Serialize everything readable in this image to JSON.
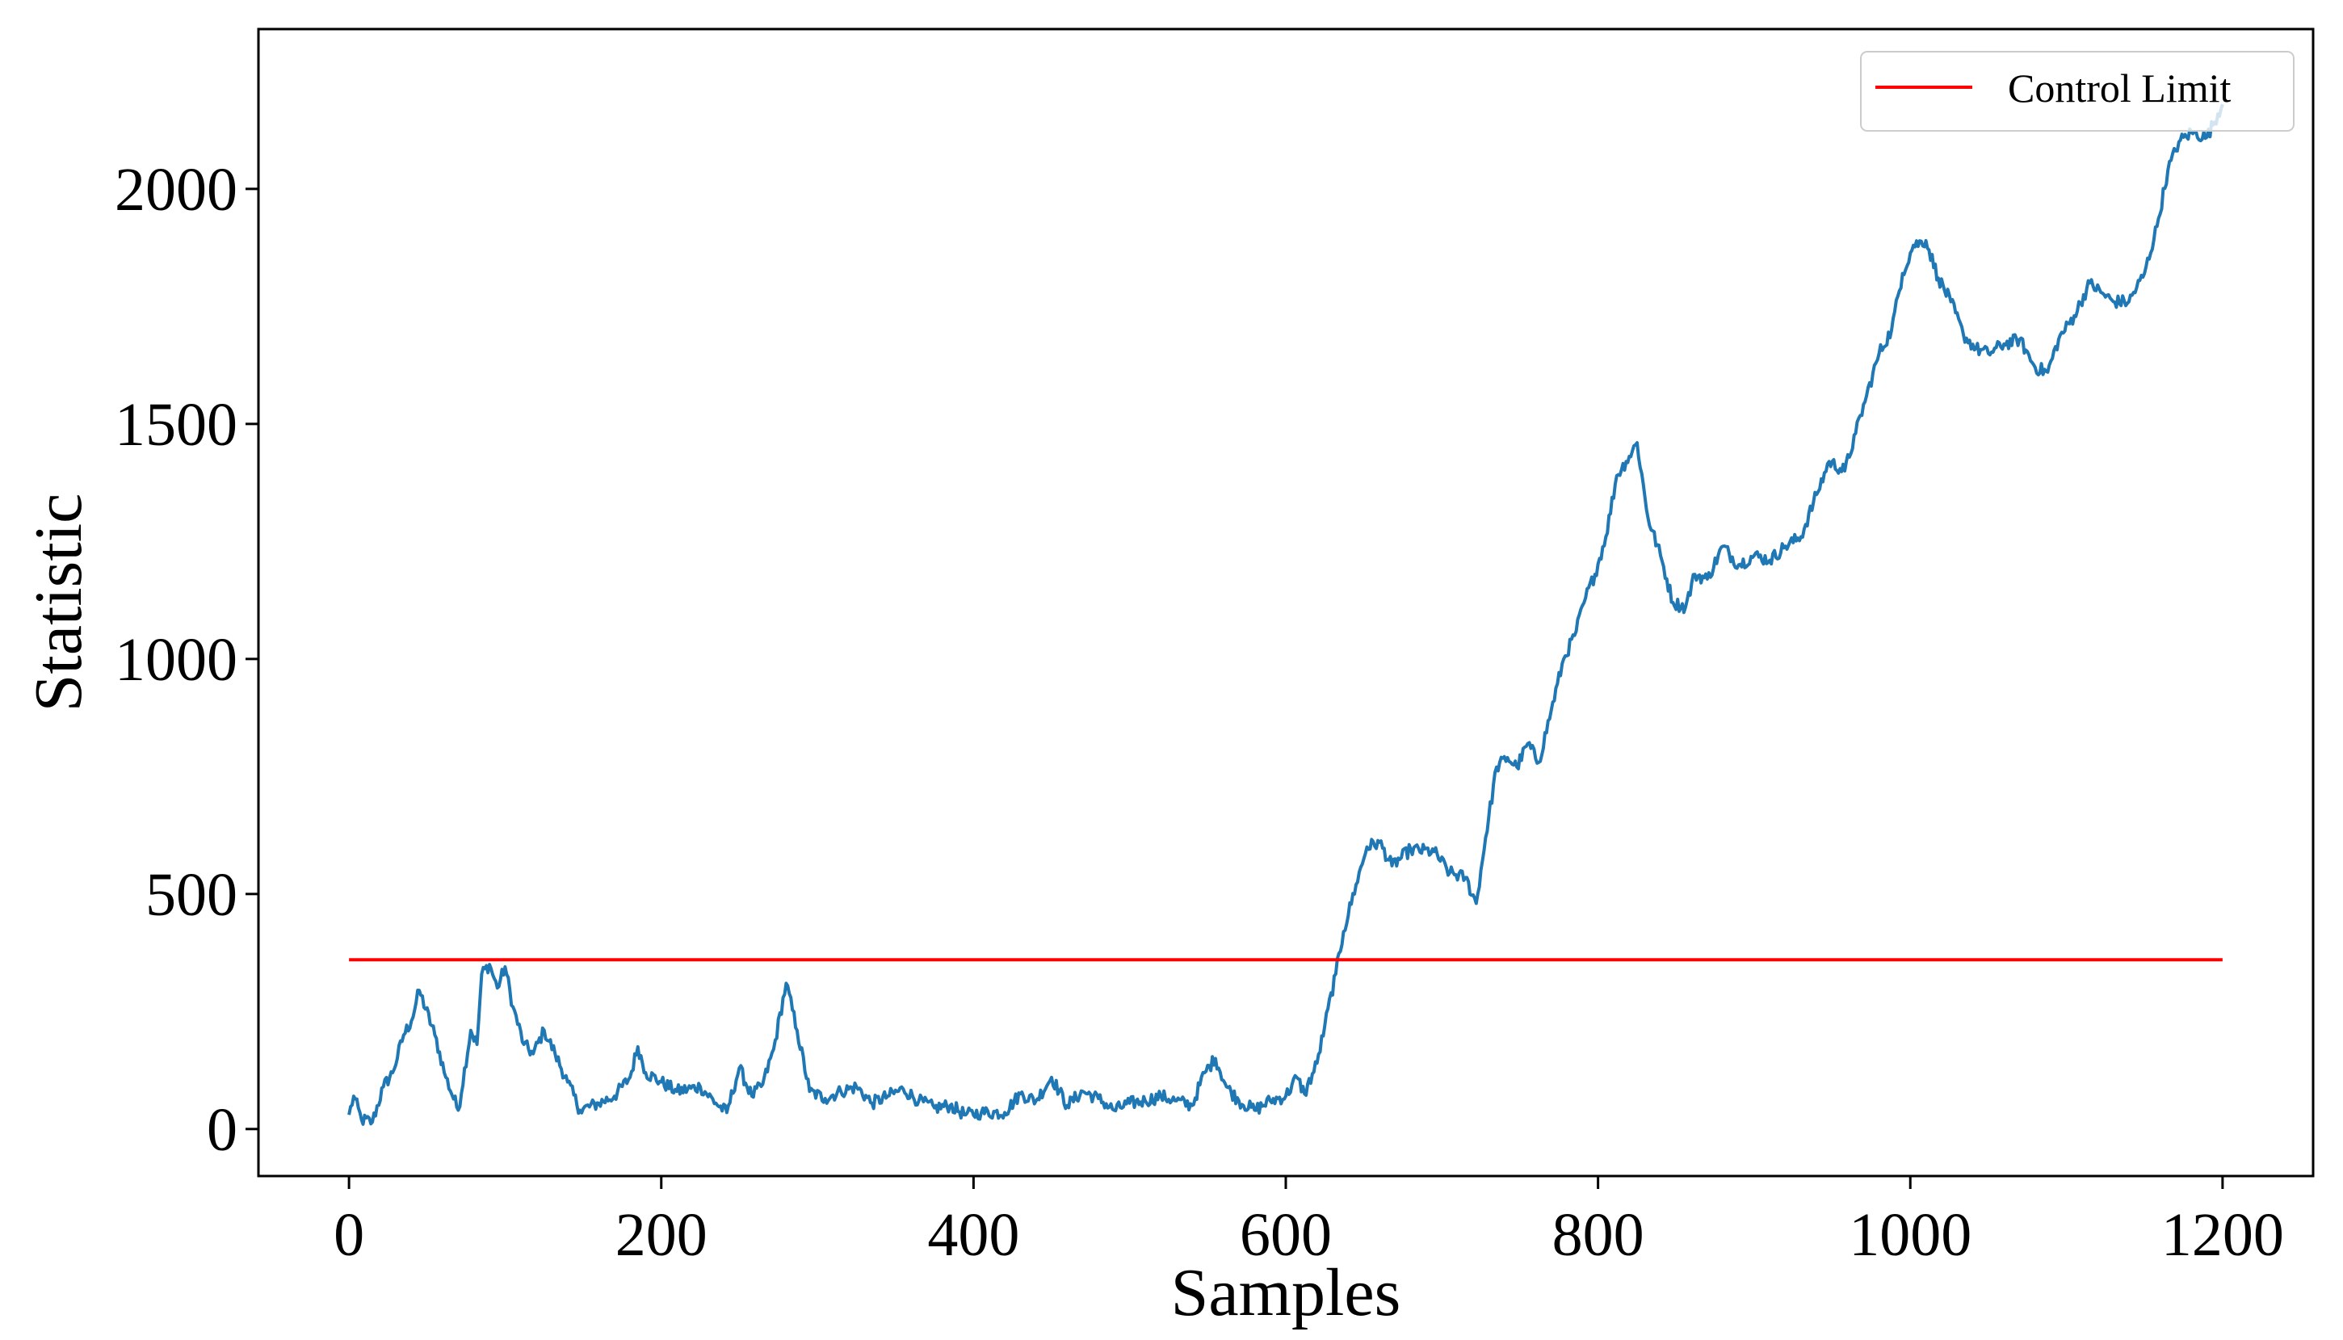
{
  "chart_data": {
    "type": "line",
    "title": "",
    "xlabel": "Samples",
    "ylabel": "Statistic",
    "xlim": [
      -58,
      1258
    ],
    "ylim": [
      -100,
      2340
    ],
    "xticks": [
      0,
      200,
      400,
      600,
      800,
      1000,
      1200
    ],
    "xtick_labels": [
      "0",
      "200",
      "400",
      "600",
      "800",
      "1000",
      "1200"
    ],
    "yticks": [
      0,
      500,
      1000,
      1500,
      2000
    ],
    "ytick_labels": [
      "0",
      "500",
      "1000",
      "1500",
      "2000"
    ],
    "grid": false,
    "legend": {
      "position": "top-right",
      "entries": [
        "Control Limit"
      ]
    },
    "control_limit": {
      "name": "Control Limit",
      "value": 360,
      "x_range": [
        0,
        1200
      ],
      "color": "#ff0000"
    },
    "series": [
      {
        "color": "#1f77b4",
        "noise": 14,
        "points": [
          [
            0,
            30
          ],
          [
            3,
            70
          ],
          [
            8,
            20
          ],
          [
            15,
            15
          ],
          [
            22,
            90
          ],
          [
            28,
            120
          ],
          [
            35,
            200
          ],
          [
            40,
            230
          ],
          [
            45,
            295
          ],
          [
            55,
            200
          ],
          [
            62,
            110
          ],
          [
            70,
            40
          ],
          [
            78,
            210
          ],
          [
            82,
            180
          ],
          [
            85,
            330
          ],
          [
            90,
            350
          ],
          [
            95,
            300
          ],
          [
            100,
            345
          ],
          [
            105,
            260
          ],
          [
            112,
            180
          ],
          [
            118,
            160
          ],
          [
            125,
            210
          ],
          [
            132,
            160
          ],
          [
            140,
            100
          ],
          [
            148,
            40
          ],
          [
            160,
            55
          ],
          [
            170,
            70
          ],
          [
            180,
            110
          ],
          [
            185,
            175
          ],
          [
            190,
            120
          ],
          [
            200,
            100
          ],
          [
            210,
            80
          ],
          [
            225,
            90
          ],
          [
            235,
            55
          ],
          [
            242,
            35
          ],
          [
            250,
            130
          ],
          [
            258,
            70
          ],
          [
            265,
            95
          ],
          [
            272,
            170
          ],
          [
            280,
            310
          ],
          [
            287,
            210
          ],
          [
            295,
            80
          ],
          [
            305,
            65
          ],
          [
            315,
            80
          ],
          [
            325,
            90
          ],
          [
            335,
            55
          ],
          [
            345,
            70
          ],
          [
            355,
            85
          ],
          [
            365,
            60
          ],
          [
            375,
            45
          ],
          [
            385,
            50
          ],
          [
            395,
            30
          ],
          [
            405,
            35
          ],
          [
            420,
            35
          ],
          [
            430,
            75
          ],
          [
            440,
            60
          ],
          [
            450,
            110
          ],
          [
            460,
            50
          ],
          [
            470,
            80
          ],
          [
            480,
            65
          ],
          [
            490,
            40
          ],
          [
            500,
            55
          ],
          [
            510,
            60
          ],
          [
            520,
            70
          ],
          [
            530,
            60
          ],
          [
            540,
            50
          ],
          [
            548,
            120
          ],
          [
            555,
            150
          ],
          [
            562,
            90
          ],
          [
            570,
            60
          ],
          [
            580,
            40
          ],
          [
            590,
            60
          ],
          [
            600,
            70
          ],
          [
            607,
            110
          ],
          [
            612,
            75
          ],
          [
            620,
            140
          ],
          [
            625,
            220
          ],
          [
            632,
            330
          ],
          [
            637,
            420
          ],
          [
            645,
            520
          ],
          [
            652,
            600
          ],
          [
            660,
            610
          ],
          [
            668,
            560
          ],
          [
            680,
            595
          ],
          [
            695,
            590
          ],
          [
            705,
            545
          ],
          [
            715,
            535
          ],
          [
            722,
            480
          ],
          [
            728,
            620
          ],
          [
            735,
            770
          ],
          [
            742,
            790
          ],
          [
            748,
            770
          ],
          [
            755,
            820
          ],
          [
            762,
            780
          ],
          [
            770,
            890
          ],
          [
            778,
            1000
          ],
          [
            785,
            1050
          ],
          [
            792,
            1130
          ],
          [
            798,
            1180
          ],
          [
            805,
            1260
          ],
          [
            812,
            1390
          ],
          [
            818,
            1420
          ],
          [
            825,
            1460
          ],
          [
            832,
            1300
          ],
          [
            840,
            1220
          ],
          [
            848,
            1120
          ],
          [
            856,
            1110
          ],
          [
            862,
            1180
          ],
          [
            870,
            1170
          ],
          [
            880,
            1240
          ],
          [
            890,
            1200
          ],
          [
            900,
            1220
          ],
          [
            910,
            1210
          ],
          [
            920,
            1240
          ],
          [
            930,
            1260
          ],
          [
            940,
            1350
          ],
          [
            948,
            1420
          ],
          [
            958,
            1400
          ],
          [
            965,
            1480
          ],
          [
            972,
            1560
          ],
          [
            980,
            1650
          ],
          [
            988,
            1700
          ],
          [
            995,
            1820
          ],
          [
            1002,
            1880
          ],
          [
            1010,
            1890
          ],
          [
            1018,
            1810
          ],
          [
            1026,
            1760
          ],
          [
            1034,
            1690
          ],
          [
            1042,
            1660
          ],
          [
            1050,
            1650
          ],
          [
            1060,
            1670
          ],
          [
            1070,
            1680
          ],
          [
            1080,
            1620
          ],
          [
            1088,
            1610
          ],
          [
            1095,
            1680
          ],
          [
            1105,
            1730
          ],
          [
            1115,
            1800
          ],
          [
            1122,
            1780
          ],
          [
            1130,
            1760
          ],
          [
            1140,
            1760
          ],
          [
            1150,
            1820
          ],
          [
            1158,
            1920
          ],
          [
            1165,
            2040
          ],
          [
            1172,
            2100
          ],
          [
            1180,
            2120
          ],
          [
            1190,
            2110
          ],
          [
            1200,
            2180
          ]
        ]
      }
    ]
  }
}
